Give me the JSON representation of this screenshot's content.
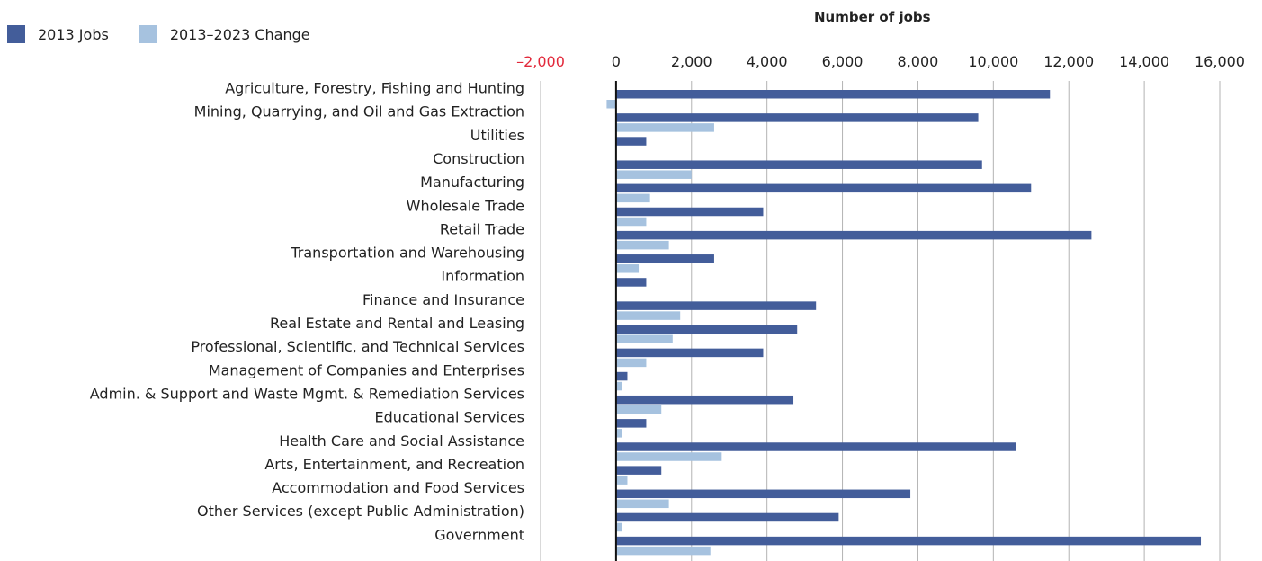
{
  "chart_data": {
    "type": "bar",
    "orientation": "horizontal",
    "axis_title": "Number of jobs",
    "xlim": [
      -2000,
      16000
    ],
    "ticks": [
      {
        "value": -2000,
        "label": "–2,000"
      },
      {
        "value": 0,
        "label": "0"
      },
      {
        "value": 2000,
        "label": "2,000"
      },
      {
        "value": 4000,
        "label": "4,000"
      },
      {
        "value": 6000,
        "label": "6,000"
      },
      {
        "value": 8000,
        "label": "8,000"
      },
      {
        "value": 10000,
        "label": "10,000"
      },
      {
        "value": 12000,
        "label": "12,000"
      },
      {
        "value": 14000,
        "label": "14,000"
      },
      {
        "value": 16000,
        "label": "16,000"
      }
    ],
    "grid": true,
    "legend_position": "top-left",
    "categories": [
      "Agriculture, Forestry, Fishing and Hunting",
      "Mining, Quarrying, and Oil and Gas Extraction",
      "Utilities",
      "Construction",
      "Manufacturing",
      "Wholesale Trade",
      "Retail Trade",
      "Transportation and Warehousing",
      "Information",
      "Finance and Insurance",
      "Real Estate and Rental and Leasing",
      "Professional, Scientific, and Technical Services",
      "Management of Companies and Enterprises",
      "Admin. & Support and Waste Mgmt. & Remediation Services",
      "Educational Services",
      "Health Care and Social Assistance",
      "Arts, Entertainment, and Recreation",
      "Accommodation and Food Services",
      "Other Services (except Public Administration)",
      "Government"
    ],
    "series": [
      {
        "name": "2013 Jobs",
        "color": "#435d9a",
        "values": [
          11500,
          9600,
          800,
          9700,
          11000,
          3900,
          12600,
          2600,
          800,
          5300,
          4800,
          3900,
          300,
          4700,
          800,
          10600,
          1200,
          7800,
          5900,
          15500
        ]
      },
      {
        "name": "2013–2023 Change",
        "color": "#a6c2df",
        "values": [
          -250,
          2600,
          0,
          2000,
          900,
          800,
          1400,
          600,
          0,
          1700,
          1500,
          800,
          150,
          1200,
          150,
          2800,
          300,
          1400,
          150,
          2500
        ]
      }
    ]
  }
}
